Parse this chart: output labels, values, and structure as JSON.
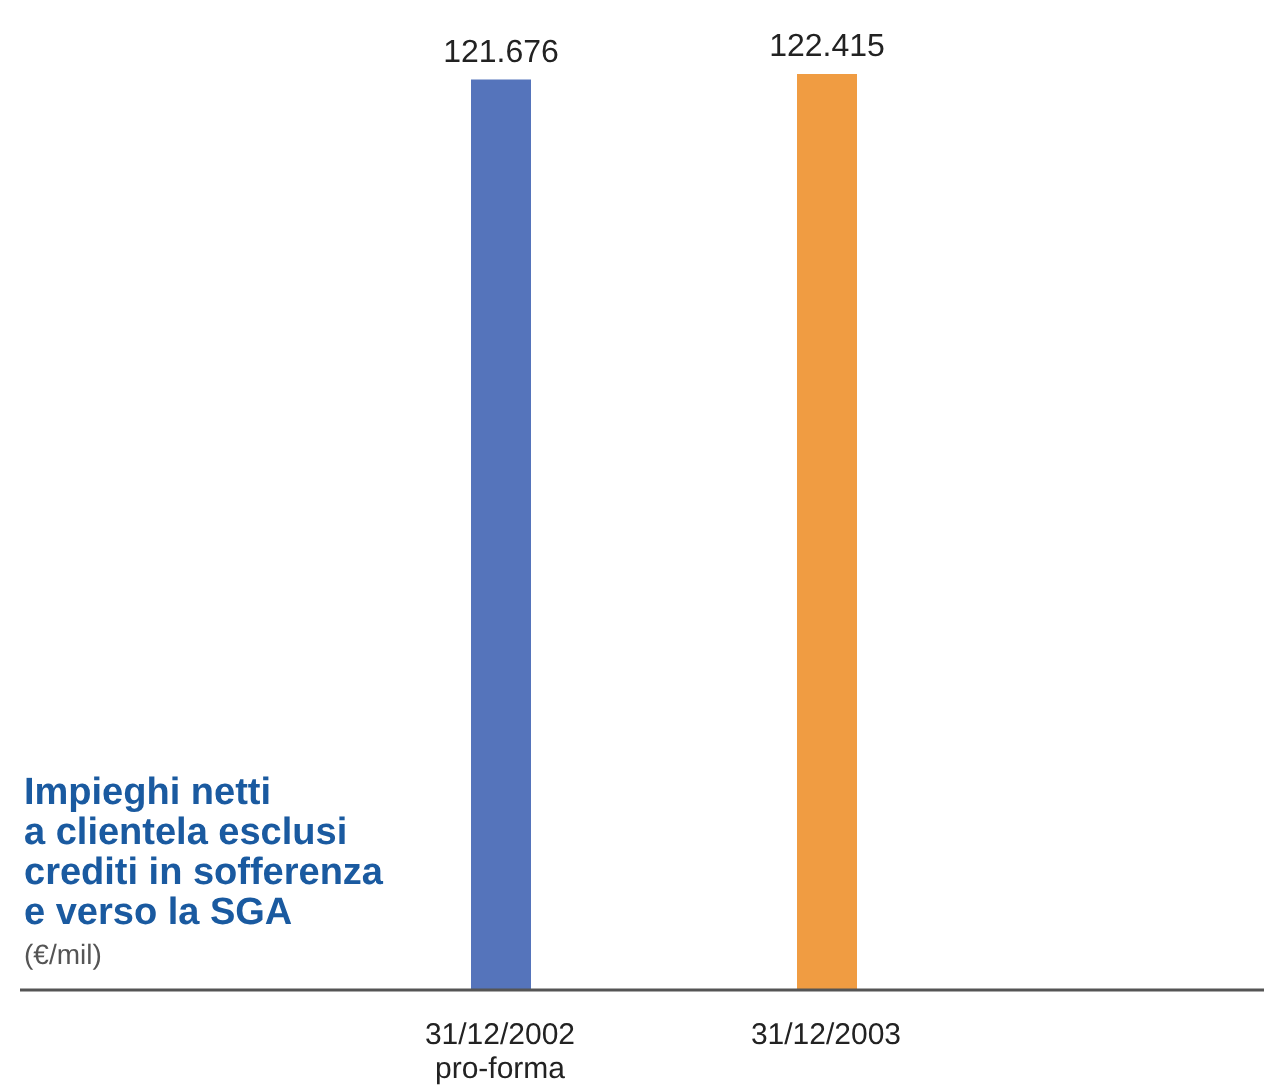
{
  "chart_data": {
    "type": "bar",
    "title": "Impieghi netti\na clientela esclusi\ncrediti in sofferenza\ne verso la SGA",
    "subtitle": "(€/mil)",
    "categories": [
      "31/12/2002\npro-forma",
      "31/12/2003"
    ],
    "values": [
      121676,
      122415
    ],
    "colors": [
      "#5574bb",
      "#f09c42"
    ],
    "value_labels": [
      "121.676",
      "122.415"
    ]
  }
}
